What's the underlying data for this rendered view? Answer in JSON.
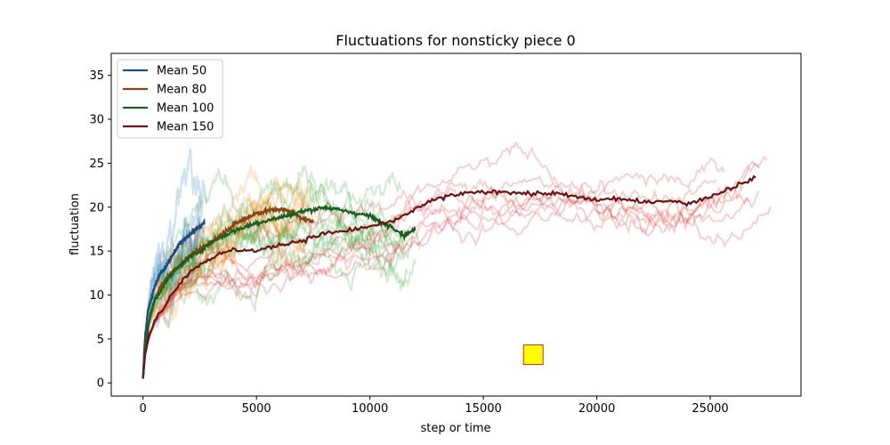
{
  "chart_data": {
    "type": "line",
    "title": "Fluctuations for nonsticky piece 0",
    "xlabel": "step or time",
    "ylabel": "fluctuation",
    "xlim": [
      -1400,
      29000
    ],
    "ylim": [
      -1.5,
      37.5
    ],
    "xticks": [
      0,
      5000,
      10000,
      15000,
      20000,
      25000
    ],
    "xtick_labels": [
      "0",
      "5000",
      "10000",
      "15000",
      "20000",
      "25000"
    ],
    "yticks": [
      0,
      5,
      10,
      15,
      20,
      25,
      30,
      35
    ],
    "ytick_labels": [
      "0",
      "5",
      "10",
      "15",
      "20",
      "25",
      "30",
      "35"
    ],
    "grid": false,
    "legend_position": "top-left",
    "series": [
      {
        "name": "Mean 50",
        "color": "#1f4e79",
        "faint_color": "#1f77b4",
        "faint_count": 8,
        "x": [
          0,
          50,
          100,
          200,
          300,
          500,
          700,
          1000,
          1300,
          1600,
          1900,
          2200,
          2500,
          2700
        ],
        "y": [
          0.5,
          3.5,
          5.5,
          7.8,
          9.0,
          10.8,
          12.2,
          13.2,
          14.5,
          15.8,
          16.5,
          17.2,
          17.8,
          18.2
        ]
      },
      {
        "name": "Mean 80",
        "color": "#8b4513",
        "faint_color": "#ff7f0e",
        "faint_count": 8,
        "x": [
          0,
          100,
          300,
          500,
          800,
          1200,
          1600,
          2000,
          2500,
          3000,
          3500,
          4000,
          4500,
          5000,
          5500,
          6000,
          6500,
          7000,
          7500
        ],
        "y": [
          0.5,
          4.0,
          7.5,
          9.3,
          11.0,
          12.5,
          13.3,
          14.3,
          15.2,
          16.0,
          17.0,
          18.0,
          18.7,
          19.3,
          19.6,
          19.8,
          19.5,
          18.8,
          18.3
        ]
      },
      {
        "name": "Mean 100",
        "color": "#1b5e20",
        "faint_color": "#2ca02c",
        "faint_count": 10,
        "x": [
          0,
          100,
          300,
          500,
          1000,
          1500,
          2000,
          2500,
          3000,
          4000,
          5000,
          6000,
          7000,
          8000,
          9000,
          10000,
          10500,
          11000,
          11500,
          12000
        ],
        "y": [
          0.5,
          4.0,
          7.5,
          9.3,
          11.5,
          13.0,
          14.2,
          15.0,
          16.0,
          17.3,
          18.2,
          18.8,
          19.5,
          20.0,
          19.5,
          19.0,
          18.2,
          17.8,
          16.8,
          17.5
        ]
      },
      {
        "name": "Mean 150",
        "color": "#6b1414",
        "faint_color": "#d62728",
        "faint_count": 8,
        "x": [
          0,
          100,
          300,
          500,
          1000,
          1500,
          2000,
          2500,
          3000,
          4000,
          5000,
          6000,
          7000,
          8000,
          9000,
          10000,
          11000,
          12000,
          13000,
          14000,
          15000,
          16000,
          17000,
          18000,
          19000,
          20000,
          21000,
          22000,
          23000,
          24000,
          25000,
          26000,
          27000
        ],
        "y": [
          0.5,
          3.5,
          5.5,
          7.0,
          9.0,
          11.0,
          12.5,
          13.5,
          14.2,
          15.2,
          15.0,
          15.7,
          16.2,
          17.0,
          17.3,
          17.8,
          18.3,
          19.8,
          21.0,
          21.5,
          21.7,
          21.8,
          21.5,
          21.6,
          21.2,
          20.8,
          21.0,
          20.5,
          20.8,
          20.4,
          21.2,
          22.3,
          23.3
        ]
      }
    ],
    "annotations": [
      {
        "kind": "square-marker",
        "x": 17200,
        "y": 3.2,
        "fill": "#ffff00",
        "stroke": "#d62728"
      }
    ]
  }
}
